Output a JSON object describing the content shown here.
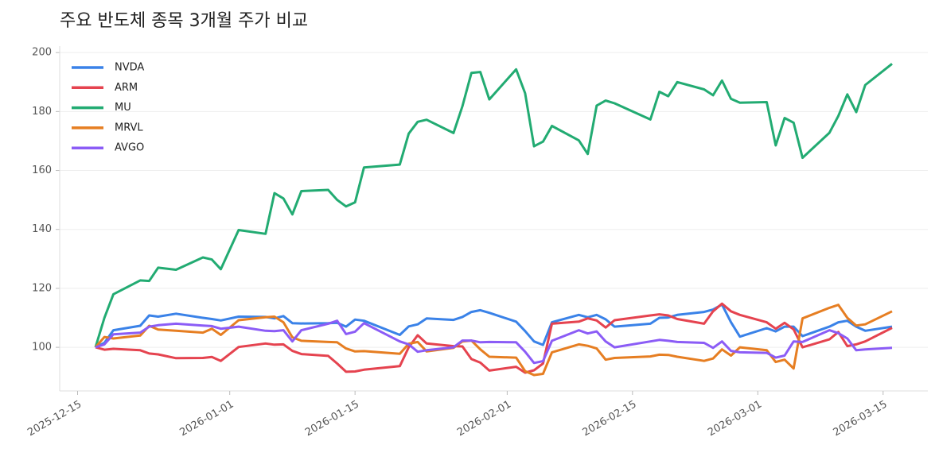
{
  "chart_data": {
    "type": "line",
    "title": "주요 반도체 종목 3개월 주가 비교",
    "x": [
      "2025-12-17",
      "2025-12-18",
      "2025-12-19",
      "2025-12-22",
      "2025-12-23",
      "2025-12-24",
      "2025-12-26",
      "2025-12-29",
      "2025-12-30",
      "2025-12-31",
      "2026-01-02",
      "2026-01-05",
      "2026-01-06",
      "2026-01-07",
      "2026-01-08",
      "2026-01-09",
      "2026-01-12",
      "2026-01-13",
      "2026-01-14",
      "2026-01-15",
      "2026-01-16",
      "2026-01-20",
      "2026-01-21",
      "2026-01-22",
      "2026-01-23",
      "2026-01-26",
      "2026-01-27",
      "2026-01-28",
      "2026-01-29",
      "2026-01-30",
      "2026-02-02",
      "2026-02-03",
      "2026-02-04",
      "2026-02-05",
      "2026-02-06",
      "2026-02-09",
      "2026-02-10",
      "2026-02-11",
      "2026-02-12",
      "2026-02-13",
      "2026-02-17",
      "2026-02-18",
      "2026-02-19",
      "2026-02-20",
      "2026-02-23",
      "2026-02-24",
      "2026-02-25",
      "2026-02-26",
      "2026-02-27",
      "2026-03-02",
      "2026-03-03",
      "2026-03-04",
      "2026-03-05",
      "2026-03-06",
      "2026-03-09",
      "2026-03-10",
      "2026-03-11",
      "2026-03-12",
      "2026-03-13",
      "2026-03-16"
    ],
    "series": [
      {
        "name": "NVDA",
        "color": "#3a82e8",
        "values": [
          100,
          101.5,
          105.8,
          107.3,
          110.8,
          110.4,
          111.4,
          110,
          109.6,
          109.1,
          110.4,
          110.3,
          109.8,
          110.6,
          108.2,
          108.1,
          108.2,
          108.3,
          107,
          109.4,
          109,
          104.2,
          107.1,
          107.8,
          109.8,
          109.3,
          110.3,
          112,
          112.6,
          111.7,
          108.7,
          105.5,
          102,
          100.8,
          108.5,
          111,
          110.2,
          111,
          109.5,
          107,
          108,
          110,
          110.1,
          111,
          112,
          112.8,
          114.5,
          108.5,
          103.6,
          106.5,
          105.4,
          107,
          107,
          103.8,
          107,
          108.5,
          109,
          107,
          105.6,
          107
        ]
      },
      {
        "name": "ARM",
        "color": "#e5434f",
        "values": [
          100,
          99.2,
          99.5,
          99,
          97.9,
          97.6,
          96.3,
          96.4,
          96.7,
          95.4,
          100.1,
          101.3,
          100.9,
          101,
          98.8,
          97.7,
          97.1,
          94.5,
          91.7,
          91.8,
          92.4,
          93.6,
          100,
          104.1,
          101.3,
          100.4,
          100.3,
          96,
          94.8,
          92.1,
          93.4,
          91.4,
          92.2,
          94.5,
          108,
          108.7,
          109.8,
          109.1,
          106.7,
          109.2,
          110.8,
          111.2,
          110.8,
          109.6,
          108,
          112.2,
          114.8,
          112.2,
          111,
          108.5,
          106.3,
          108.3,
          106.1,
          100,
          102.7,
          105.2,
          100.4,
          101,
          102,
          106.6
        ]
      },
      {
        "name": "MU",
        "color": "#22ab72",
        "values": [
          100,
          110,
          118,
          122.7,
          122.5,
          127,
          126.3,
          130.5,
          129.8,
          126.5,
          139.8,
          138.5,
          152.3,
          150.5,
          145.1,
          153,
          153.4,
          150,
          147.8,
          149.2,
          161,
          162,
          172.5,
          176.5,
          177.2,
          172.7,
          181.8,
          193.1,
          193.4,
          184.1,
          194.3,
          186.2,
          168.2,
          169.8,
          175.1,
          170.2,
          165.6,
          182,
          183.7,
          182.8,
          177.3,
          186.7,
          185.2,
          190,
          187.5,
          185.5,
          190.5,
          184.3,
          183,
          183.2,
          168.5,
          177.8,
          176.2,
          164.3,
          172.8,
          178.5,
          185.8,
          179.8,
          189,
          196.2
        ]
      },
      {
        "name": "MRVL",
        "color": "#e67e22",
        "values": [
          100,
          103.5,
          103,
          104,
          107.3,
          106,
          105.6,
          105,
          106.3,
          104.2,
          109.2,
          110.2,
          110.4,
          108.5,
          103.4,
          102.2,
          101.8,
          101.7,
          99.6,
          98.6,
          98.7,
          97.8,
          101.2,
          101.8,
          98.6,
          99.8,
          102,
          102.3,
          99.3,
          96.8,
          96.5,
          91.9,
          90.6,
          91,
          98.3,
          101,
          100.5,
          99.6,
          95.8,
          96.4,
          96.9,
          97.5,
          97.4,
          96.8,
          95.4,
          96.2,
          99.3,
          97.2,
          100,
          99,
          95,
          95.8,
          92.8,
          109.8,
          113.4,
          114.4,
          110,
          107.4,
          107.8,
          112.2
        ]
      },
      {
        "name": "AVGO",
        "color": "#8b5cf6",
        "values": [
          100,
          101,
          104.4,
          105,
          107,
          107.5,
          108,
          107.4,
          107.2,
          106.3,
          107,
          105.6,
          105.5,
          105.8,
          102,
          105.8,
          108,
          109,
          104.5,
          105.3,
          108.2,
          102,
          101,
          98.5,
          99,
          100,
          102.3,
          102.3,
          101.7,
          101.8,
          101.7,
          98.5,
          94.7,
          95.3,
          102.2,
          105.8,
          104.7,
          105.4,
          102,
          100,
          102,
          102.5,
          102.2,
          101.8,
          101.5,
          99.8,
          102,
          98.8,
          98.3,
          98.1,
          96.5,
          97.2,
          102,
          101.8,
          105.8,
          104.8,
          103,
          99,
          99.3,
          99.8
        ]
      }
    ],
    "xlim": [
      "2025-12-13",
      "2026-03-20"
    ],
    "xticks": [
      "2025-12-15",
      "2026-01-01",
      "2026-01-15",
      "2026-02-01",
      "2026-02-15",
      "2026-03-01",
      "2026-03-15"
    ],
    "ylim": [
      85.2,
      202.2
    ],
    "yticks": [
      100,
      120,
      140,
      160,
      180,
      200
    ],
    "grid": true,
    "legend": "upper-left"
  }
}
